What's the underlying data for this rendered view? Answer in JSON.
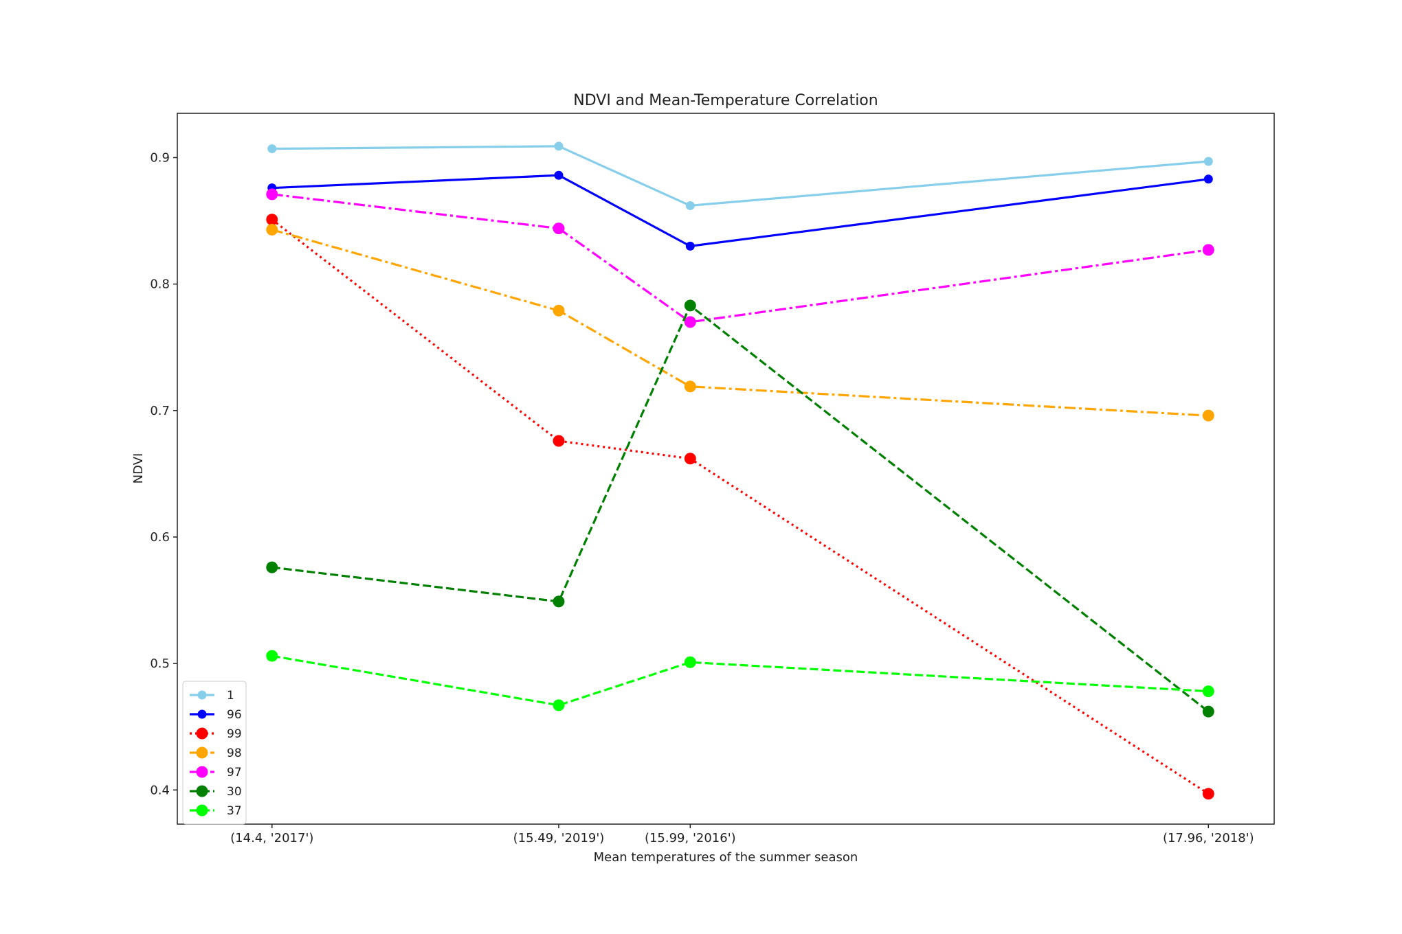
{
  "chart_data": {
    "type": "line",
    "title": "NDVI and Mean-Temperature Correlation",
    "xlabel": "Mean temperatures of the summer season",
    "ylabel": "NDVI",
    "x": [
      14.4,
      15.49,
      15.99,
      17.96
    ],
    "x_tick_labels": [
      "(14.4, '2017')",
      "(15.49, '2019')",
      "(15.99, '2016')",
      "(17.96, '2018')"
    ],
    "xlim": [
      14.04,
      18.21
    ],
    "ylim": [
      0.373,
      0.935
    ],
    "y_ticks": [
      0.4,
      0.5,
      0.6,
      0.7,
      0.8,
      0.9
    ],
    "y_tick_labels": [
      "0.4",
      "0.5",
      "0.6",
      "0.7",
      "0.8",
      "0.9"
    ],
    "grid": false,
    "legend_position": "lower-left",
    "series": [
      {
        "name": "1",
        "values": [
          0.907,
          0.909,
          0.862,
          0.897
        ],
        "color": "#87ceeb",
        "dash": "solid",
        "marker_size": "small"
      },
      {
        "name": "96",
        "values": [
          0.876,
          0.886,
          0.83,
          0.883
        ],
        "color": "#0000ff",
        "dash": "solid",
        "marker_size": "small"
      },
      {
        "name": "99",
        "values": [
          0.851,
          0.676,
          0.662,
          0.397
        ],
        "color": "#ff0000",
        "dash": "dotted",
        "marker_size": "large"
      },
      {
        "name": "98",
        "values": [
          0.843,
          0.779,
          0.719,
          0.696
        ],
        "color": "#ffa500",
        "dash": "dashdot",
        "marker_size": "large"
      },
      {
        "name": "97",
        "values": [
          0.871,
          0.844,
          0.77,
          0.827
        ],
        "color": "#ff00ff",
        "dash": "dashdot",
        "marker_size": "large"
      },
      {
        "name": "30",
        "values": [
          0.576,
          0.549,
          0.783,
          0.462
        ],
        "color": "#008000",
        "dash": "dashed",
        "marker_size": "large"
      },
      {
        "name": "37",
        "values": [
          0.506,
          0.467,
          0.501,
          0.478
        ],
        "color": "#00ff00",
        "dash": "dashed",
        "marker_size": "large"
      }
    ]
  }
}
